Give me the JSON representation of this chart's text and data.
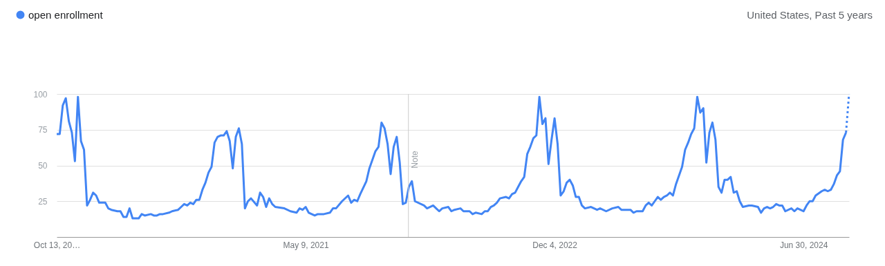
{
  "chart_data": {
    "type": "line",
    "subtitle": "United States, Past 5 years",
    "series": [
      {
        "name": "open enrollment",
        "color": "#4285f4",
        "line_style": "solid",
        "x": [
          "2019-10-13",
          "2019-10-20",
          "2019-10-27",
          "2019-11-03",
          "2019-11-10",
          "2019-11-17",
          "2019-11-24",
          "2019-12-01",
          "2019-12-08",
          "2019-12-15",
          "2019-12-22",
          "2019-12-29",
          "2020-01-05",
          "2020-01-12",
          "2020-01-19",
          "2020-02-02",
          "2020-02-09",
          "2020-02-16",
          "2020-03-01",
          "2020-03-08",
          "2020-03-15",
          "2020-03-22",
          "2020-03-29",
          "2020-04-05",
          "2020-04-19",
          "2020-04-26",
          "2020-05-03",
          "2020-05-17",
          "2020-05-24",
          "2020-05-31",
          "2020-06-07",
          "2020-06-14",
          "2020-06-28",
          "2020-07-05",
          "2020-07-19",
          "2020-07-26",
          "2020-08-02",
          "2020-08-09",
          "2020-08-16",
          "2020-08-23",
          "2020-08-30",
          "2020-09-06",
          "2020-09-13",
          "2020-09-20",
          "2020-09-27",
          "2020-10-04",
          "2020-10-11",
          "2020-10-18",
          "2020-10-25",
          "2020-11-01",
          "2020-11-08",
          "2020-11-15",
          "2020-11-22",
          "2020-11-29",
          "2020-12-06",
          "2020-12-13",
          "2020-12-20",
          "2020-12-27",
          "2021-01-03",
          "2021-01-17",
          "2021-01-24",
          "2021-01-31",
          "2021-02-07",
          "2021-02-14",
          "2021-02-21",
          "2021-02-28",
          "2021-03-21",
          "2021-04-04",
          "2021-04-18",
          "2021-04-25",
          "2021-05-02",
          "2021-05-09",
          "2021-05-16",
          "2021-05-30",
          "2021-06-06",
          "2021-06-20",
          "2021-07-04",
          "2021-07-11",
          "2021-07-18",
          "2021-08-01",
          "2021-08-15",
          "2021-08-22",
          "2021-08-29",
          "2021-09-05",
          "2021-09-12",
          "2021-09-26",
          "2021-10-03",
          "2021-10-17",
          "2021-10-24",
          "2021-10-31",
          "2021-11-07",
          "2021-11-14",
          "2021-11-21",
          "2021-11-28",
          "2021-12-05",
          "2021-12-12",
          "2021-12-19",
          "2021-12-26",
          "2022-01-02",
          "2022-01-09",
          "2022-01-16",
          "2022-02-06",
          "2022-02-13",
          "2022-02-27",
          "2022-03-06",
          "2022-03-13",
          "2022-03-20",
          "2022-04-03",
          "2022-04-10",
          "2022-04-17",
          "2022-05-01",
          "2022-05-08",
          "2022-05-22",
          "2022-05-29",
          "2022-06-05",
          "2022-06-19",
          "2022-06-26",
          "2022-07-03",
          "2022-07-10",
          "2022-07-17",
          "2022-07-24",
          "2022-07-31",
          "2022-08-14",
          "2022-08-21",
          "2022-08-28",
          "2022-09-04",
          "2022-09-11",
          "2022-09-18",
          "2022-09-25",
          "2022-10-02",
          "2022-10-09",
          "2022-10-16",
          "2022-10-23",
          "2022-10-30",
          "2022-11-06",
          "2022-11-13",
          "2022-11-20",
          "2022-11-27",
          "2022-12-04",
          "2022-12-11",
          "2022-12-18",
          "2022-12-25",
          "2023-01-01",
          "2023-01-08",
          "2023-01-15",
          "2023-01-22",
          "2023-01-29",
          "2023-02-05",
          "2023-02-12",
          "2023-02-26",
          "2023-03-05",
          "2023-03-12",
          "2023-03-19",
          "2023-04-02",
          "2023-04-16",
          "2023-04-30",
          "2023-05-07",
          "2023-05-28",
          "2023-06-04",
          "2023-06-11",
          "2023-06-25",
          "2023-07-02",
          "2023-07-09",
          "2023-07-16",
          "2023-07-23",
          "2023-07-30",
          "2023-08-06",
          "2023-08-13",
          "2023-08-20",
          "2023-08-27",
          "2023-09-03",
          "2023-09-10",
          "2023-09-17",
          "2023-09-24",
          "2023-10-01",
          "2023-10-08",
          "2023-10-15",
          "2023-10-22",
          "2023-10-29",
          "2023-11-05",
          "2023-11-12",
          "2023-11-19",
          "2023-11-26",
          "2023-12-03",
          "2023-12-10",
          "2023-12-17",
          "2023-12-24",
          "2023-12-31",
          "2024-01-07",
          "2024-01-14",
          "2024-01-21",
          "2024-01-28",
          "2024-02-04",
          "2024-02-11",
          "2024-02-25",
          "2024-03-03",
          "2024-03-17",
          "2024-03-24",
          "2024-03-31",
          "2024-04-07",
          "2024-04-14",
          "2024-04-21",
          "2024-04-28",
          "2024-05-05",
          "2024-05-12",
          "2024-05-19",
          "2024-06-02",
          "2024-06-09",
          "2024-06-16",
          "2024-06-23",
          "2024-06-30",
          "2024-07-07",
          "2024-07-14",
          "2024-07-21",
          "2024-07-28",
          "2024-08-11",
          "2024-08-18",
          "2024-08-25",
          "2024-09-01",
          "2024-09-08",
          "2024-09-15",
          "2024-09-22",
          "2024-09-29",
          "2024-10-06"
        ],
        "values": [
          72,
          72,
          92,
          97,
          81,
          73,
          53,
          98,
          67,
          61,
          22,
          26,
          31,
          29,
          24,
          24,
          20,
          19,
          18,
          18,
          14,
          14,
          20,
          13,
          13,
          16,
          15,
          16,
          15,
          15,
          16,
          16,
          17,
          18,
          19,
          21,
          23,
          22,
          24,
          23,
          26,
          26,
          33,
          38,
          45,
          49,
          66,
          70,
          71,
          71,
          74,
          67,
          48,
          70,
          76,
          65,
          20,
          25,
          27,
          22,
          31,
          28,
          21,
          27,
          23,
          21,
          20,
          18,
          17,
          20,
          19,
          21,
          17,
          15,
          16,
          16,
          17,
          20,
          20,
          25,
          29,
          24,
          26,
          25,
          30,
          39,
          48,
          60,
          63,
          80,
          76,
          65,
          44,
          63,
          70,
          52,
          23,
          24,
          35,
          39,
          25,
          22,
          20,
          22,
          20,
          18,
          20,
          21,
          18,
          19,
          20,
          18,
          18,
          16,
          17,
          16,
          18,
          18,
          21,
          22,
          24,
          27,
          28,
          27,
          30,
          31,
          35,
          39,
          42,
          58,
          63,
          69,
          71,
          98,
          79,
          83,
          51,
          68,
          83,
          65,
          29,
          32,
          38,
          40,
          36,
          28,
          28,
          22,
          20,
          21,
          20,
          19,
          20,
          18,
          20,
          21,
          19,
          19,
          17,
          18,
          18,
          22,
          24,
          22,
          25,
          28,
          26,
          28,
          29,
          31,
          29,
          37,
          43,
          49,
          61,
          66,
          72,
          76,
          98,
          87,
          90,
          52,
          73,
          80,
          68,
          35,
          31,
          40,
          40,
          42,
          31,
          32,
          25,
          21,
          22,
          22,
          21,
          17,
          20,
          21,
          20,
          21,
          23,
          22,
          22,
          18,
          20,
          18,
          20,
          19,
          18,
          22,
          25,
          25,
          29,
          32,
          33,
          32,
          33,
          37,
          43,
          46,
          68,
          73
        ]
      },
      {
        "color": "#4285f4",
        "line_style": "dotted",
        "x": [
          "2024-10-06",
          "2024-10-13"
        ],
        "values": [
          73,
          100
        ]
      }
    ],
    "xlim": [
      "2019-10-13",
      "2024-10-13"
    ],
    "xticks": [
      {
        "value": "2019-10-13",
        "label": "Oct 13, 20…"
      },
      {
        "value": "2021-05-09",
        "label": "May 9, 2021"
      },
      {
        "value": "2022-12-04",
        "label": "Dec 4, 2022"
      },
      {
        "value": "2024-06-30",
        "label": "Jun 30, 2024"
      }
    ],
    "ylim": [
      0,
      100
    ],
    "yticks": [
      25,
      50,
      75,
      100
    ],
    "ref_lines": [
      {
        "axis": "x",
        "value": "2022-01-01",
        "label": "Note",
        "color": "#cccccc"
      }
    ],
    "grid": "y",
    "legend": "top left",
    "marker": "none"
  }
}
